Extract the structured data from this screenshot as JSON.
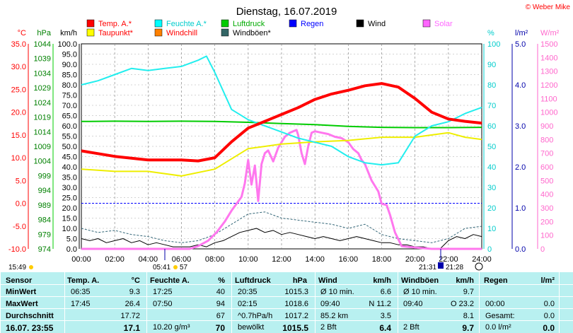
{
  "title": "Dienstag, 16.07.2019",
  "copyright": "© Weber Mike",
  "chart_data": {
    "type": "line",
    "xlabel": "",
    "x_ticks": [
      "00:00",
      "02:00",
      "04:00",
      "06:00",
      "08:00",
      "10:00",
      "12:00",
      "14:00",
      "16:00",
      "18:00",
      "20:00",
      "22:00",
      "24:00"
    ],
    "y_axes": {
      "temp_c": {
        "label": "°C",
        "ticks": [
          "35.0",
          "30.0",
          "25.0",
          "20.0",
          "15.0",
          "10.0",
          "5.0",
          "0.0",
          "-5.0",
          "-10.0"
        ],
        "color": "#ff0000"
      },
      "hpa": {
        "label": "hPa",
        "ticks": [
          "1044",
          "1039",
          "1034",
          "1029",
          "1024",
          "1019",
          "1014",
          "1009",
          "1004",
          "999",
          "994",
          "989",
          "984",
          "979",
          "974"
        ],
        "color": "#008000"
      },
      "kmh": {
        "label": "km/h",
        "ticks": [
          "100.0",
          "95.0",
          "90.0",
          "85.0",
          "80.0",
          "75.0",
          "70.0",
          "65.0",
          "60.0",
          "55.0",
          "50.0",
          "45.0",
          "40.0",
          "35.0",
          "30.0",
          "25.0",
          "20.0",
          "15.0",
          "10.0",
          "5.0",
          "0.0"
        ],
        "color": "#000000"
      },
      "pct": {
        "label": "%",
        "ticks": [
          "100",
          "90",
          "80",
          "70",
          "60",
          "50",
          "40",
          "30",
          "20",
          "10",
          "0"
        ],
        "color": "#00cccc"
      },
      "lm2": {
        "label": "l/m²",
        "ticks": [
          "5.0",
          "4.0",
          "3.0",
          "2.0",
          "1.0",
          "0.0"
        ],
        "color": "#0000aa"
      },
      "wm2": {
        "label": "W/m²",
        "ticks": [
          "1500",
          "1400",
          "1300",
          "1200",
          "1100",
          "1000",
          "900",
          "800",
          "700",
          "600",
          "500",
          "400",
          "300",
          "200",
          "100",
          "0"
        ],
        "color": "#ff66cc"
      }
    },
    "legend": [
      {
        "name": "Temp. A.*",
        "color": "#ff0000"
      },
      {
        "name": "Feuchte A.*",
        "color": "#00ffff"
      },
      {
        "name": "Luftdruck",
        "color": "#00cc00"
      },
      {
        "name": "Regen",
        "color": "#0000ff"
      },
      {
        "name": "Wind",
        "color": "#000000"
      },
      {
        "name": "Solar",
        "color": "#ff66ff"
      },
      {
        "name": "Taupunkt*",
        "color": "#ffff00"
      },
      {
        "name": "Windchill",
        "color": "#ff8000"
      },
      {
        "name": "Windböen*",
        "color": "#336666"
      }
    ],
    "annotations": {
      "left_bottom": "15:49",
      "sunrise": "05:41",
      "sunrise_extra": "57",
      "sunset": "21:31",
      "moon": "21:28"
    },
    "series": [
      {
        "name": "Temp. A.*",
        "axis": "temp_c",
        "x": [
          0,
          2,
          4,
          6,
          7,
          8,
          9,
          10,
          11,
          12,
          13,
          14,
          15,
          16,
          17,
          18,
          19,
          20,
          21,
          22,
          23,
          24
        ],
        "values": [
          11.5,
          10.3,
          9.5,
          9.5,
          9.3,
          10.0,
          13.5,
          16.5,
          18.0,
          19.5,
          21.0,
          22.8,
          24.0,
          24.8,
          25.8,
          26.3,
          25.5,
          23.0,
          20.0,
          18.5,
          18.0,
          17.6
        ]
      },
      {
        "name": "Feuchte A.*",
        "axis": "pct",
        "x": [
          0,
          1,
          2,
          3,
          4,
          5,
          6,
          7,
          7.5,
          8,
          9,
          10,
          11,
          12,
          13,
          14,
          15,
          16,
          17,
          18,
          19,
          20,
          21,
          22,
          23,
          24
        ],
        "values": [
          80,
          82,
          85,
          88,
          87,
          88,
          89,
          92,
          94,
          86,
          68,
          63,
          60,
          57,
          54,
          52,
          50,
          45,
          42,
          41,
          42,
          55,
          60,
          62,
          66,
          69
        ]
      },
      {
        "name": "Luftdruck",
        "axis": "hpa",
        "x": [
          0,
          2,
          4,
          6,
          8,
          10,
          12,
          14,
          16,
          18,
          20,
          22,
          24
        ],
        "values": [
          1017.5,
          1017.6,
          1017.5,
          1017.6,
          1017.5,
          1017.2,
          1016.8,
          1016.4,
          1015.8,
          1015.5,
          1015.4,
          1015.4,
          1015.5
        ]
      },
      {
        "name": "Taupunkt*",
        "axis": "temp_c",
        "x": [
          0,
          2,
          4,
          6,
          8,
          10,
          12,
          14,
          16,
          18,
          20,
          21,
          22,
          23,
          24
        ],
        "values": [
          7.5,
          7.0,
          7.0,
          6.0,
          7.5,
          12.0,
          13.0,
          13.5,
          13.8,
          14.5,
          14.5,
          15.0,
          15.5,
          14.5,
          14.0
        ]
      },
      {
        "name": "Solar",
        "axis": "wm2",
        "x": [
          0,
          6.5,
          7.0,
          7.6,
          8.1,
          8.6,
          9.0,
          9.3,
          9.6,
          9.8,
          10.0,
          10.2,
          10.4,
          10.6,
          10.8,
          11.0,
          11.2,
          11.5,
          11.8,
          12.2,
          12.5,
          12.9,
          13.0,
          13.2,
          13.4,
          13.6,
          13.8,
          14.0,
          14.4,
          14.8,
          15.2,
          15.6,
          16.0,
          16.3,
          16.6,
          16.8,
          17.0,
          17.2,
          17.4,
          17.6,
          17.8,
          18.0,
          18.3,
          18.5,
          18.8,
          19.2,
          20.0,
          21.0,
          21.6,
          24
        ],
        "values": [
          0,
          0,
          20,
          60,
          120,
          200,
          280,
          330,
          380,
          480,
          650,
          470,
          610,
          350,
          620,
          700,
          720,
          640,
          740,
          820,
          850,
          870,
          830,
          700,
          620,
          750,
          850,
          860,
          850,
          840,
          820,
          810,
          780,
          730,
          700,
          650,
          620,
          560,
          500,
          460,
          420,
          330,
          320,
          250,
          120,
          20,
          10,
          0,
          0,
          0
        ]
      },
      {
        "name": "Wind",
        "axis": "kmh",
        "x": [
          0,
          0.5,
          1,
          1.5,
          2,
          2.5,
          3,
          3.5,
          4,
          4.5,
          5,
          5.5,
          6,
          6.5,
          7,
          7.5,
          8,
          8.5,
          9,
          9.5,
          10,
          10.5,
          11,
          11.5,
          12,
          12.5,
          13,
          13.5,
          14,
          14.5,
          15,
          15.5,
          16,
          16.5,
          17,
          17.5,
          18,
          18.5,
          19,
          19.5,
          20,
          20.5,
          21,
          21.5,
          22,
          22.5,
          23,
          23.5,
          24
        ],
        "values": [
          5,
          4,
          5,
          3,
          4,
          5,
          3,
          4,
          2,
          3,
          2,
          1,
          1,
          1,
          2,
          1,
          3,
          4,
          6,
          8,
          9,
          10,
          8,
          9,
          7,
          8,
          7,
          6,
          5,
          6,
          5,
          4,
          5,
          6,
          5,
          4,
          3,
          3,
          2,
          2,
          1,
          1,
          0,
          0,
          4,
          6,
          5,
          7,
          6
        ]
      },
      {
        "name": "Windböen*",
        "axis": "kmh",
        "x": [
          0,
          1,
          2,
          3,
          4,
          5,
          6,
          7,
          8,
          9,
          10,
          11,
          12,
          13,
          14,
          15,
          16,
          17,
          18,
          19,
          20,
          21,
          22,
          23,
          24
        ],
        "values": [
          10,
          8,
          9,
          7,
          6,
          4,
          3,
          4,
          7,
          12,
          17,
          18,
          15,
          14,
          13,
          12,
          10,
          12,
          7,
          5,
          4,
          3,
          5,
          10,
          11
        ]
      }
    ]
  },
  "table": {
    "headers": {
      "sensor": "Sensor",
      "temp": "Temp. A.",
      "temp_unit": "°C",
      "hum": "Feuchte A.",
      "hum_unit": "%",
      "press": "Luftdruck",
      "press_unit": "hPa",
      "wind": "Wind",
      "wind_unit": "km/h",
      "gust": "Windböen",
      "gust_unit": "km/h",
      "rain": "Regen",
      "rain_unit": "l/m²"
    },
    "rows": [
      {
        "label": "MinWert",
        "temp_t": "06:35",
        "temp_v": "9.3",
        "hum_t": "17:25",
        "hum_v": "40",
        "press_t": "20:35",
        "press_v": "1015.3",
        "wind_t": "Ø 10 min.",
        "wind_v": "6.6",
        "gust_t": "Ø 10 min.",
        "gust_v": "9.7",
        "rain_t": "",
        "rain_v": ""
      },
      {
        "label": "MaxWert",
        "temp_t": "17:45",
        "temp_v": "26.4",
        "hum_t": "07:50",
        "hum_v": "94",
        "press_t": "02:15",
        "press_v": "1018.6",
        "wind_t": "09:40",
        "wind_v": "N 11.2",
        "gust_t": "09:40",
        "gust_v": "O 23.2",
        "rain_t": "00:00",
        "rain_v": "0.0"
      },
      {
        "label": "Durchschnitt",
        "temp_t": "",
        "temp_v": "17.72",
        "hum_t": "",
        "hum_v": "67",
        "press_t": "^0.7hPa/h",
        "press_v": "1017.2",
        "wind_t": "85.2 km",
        "wind_v": "3.5",
        "gust_t": "",
        "gust_v": "8.1",
        "rain_t": "Gesamt:",
        "rain_v": "0.0"
      },
      {
        "label": "16.07. 23:55",
        "temp_t": "",
        "temp_v": "17.1",
        "hum_t": "10.20 g/m³",
        "hum_v": "70",
        "press_t": "bewölkt",
        "press_v": "1015.5",
        "wind_t": "2 Bft",
        "wind_v": "6.4",
        "gust_t": "2 Bft",
        "gust_v": "9.7",
        "rain_t": "0.0 l/m²",
        "rain_v": "0.0"
      }
    ]
  }
}
